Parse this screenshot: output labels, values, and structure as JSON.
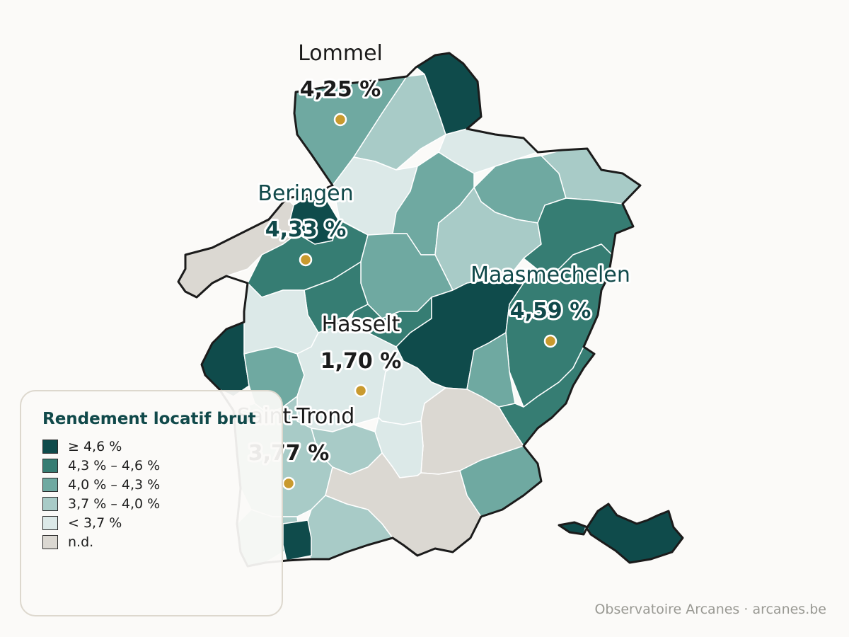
{
  "map": {
    "colors": {
      "c1": "#0f4b4b",
      "c2": "#367d73",
      "c3": "#6fa9a1",
      "c4": "#a8cbc7",
      "c5": "#dce9e8",
      "nd": "#dbd8d2",
      "marker": "#c99a2e"
    },
    "cities": [
      {
        "name": "Lommel",
        "value": "4,25 %"
      },
      {
        "name": "Beringen",
        "value": "4,33 %"
      },
      {
        "name": "Hasselt",
        "value": "1,70 %"
      },
      {
        "name": "Maasmechelen",
        "value": "4,59 %"
      },
      {
        "name": "Saint-Trond",
        "value": "3,77 %"
      }
    ]
  },
  "legend": {
    "title": "Rendement locatif brut",
    "items": [
      {
        "label": "≥ 4,6 %",
        "color": "#0f4b4b"
      },
      {
        "label": "4,3 % – 4,6 %",
        "color": "#367d73"
      },
      {
        "label": "4,0 % – 4,3 %",
        "color": "#6fa9a1"
      },
      {
        "label": "3,7 % – 4,0 %",
        "color": "#a8cbc7"
      },
      {
        "label": "< 3,7 %",
        "color": "#dce9e8"
      },
      {
        "label": "n.d.",
        "color": "#dbd8d2"
      }
    ]
  },
  "source": "Observatoire Arcanes · arcanes.be"
}
